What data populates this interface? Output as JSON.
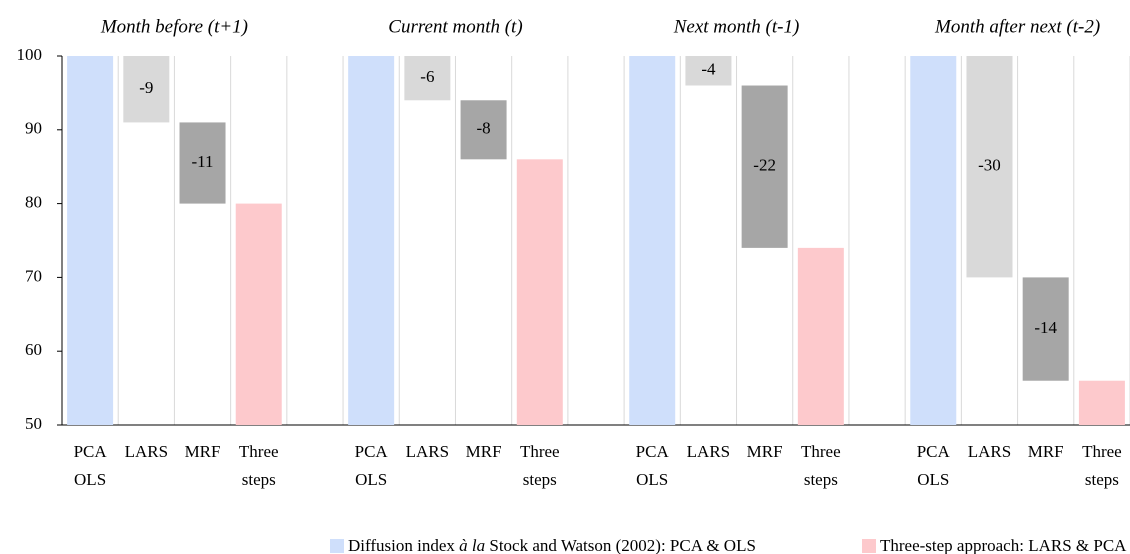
{
  "chart_data": {
    "type": "waterfall",
    "ylim": [
      50,
      100
    ],
    "yticks": [
      50,
      60,
      70,
      80,
      90,
      100
    ],
    "colors": [
      "#cfdffb",
      "#d9d9d9",
      "#a6a6a6",
      "#fdc9cc"
    ],
    "label_colors": [
      "#000000",
      "#000000",
      "#ffffff",
      "#000000"
    ],
    "categories": [
      [
        "PCA",
        "OLS"
      ],
      [
        "LARS"
      ],
      [
        "MRF"
      ],
      [
        "Three",
        "steps"
      ]
    ],
    "panels": [
      {
        "title": "Month before (t+1)",
        "values": [
          100,
          -9,
          -11,
          80
        ]
      },
      {
        "title": "Current month (t)",
        "values": [
          100,
          -6,
          -8,
          86
        ]
      },
      {
        "title": "Next month (t-1)",
        "values": [
          100,
          -4,
          -22,
          74
        ]
      },
      {
        "title": "Month after next (t-2)",
        "values": [
          100,
          -30,
          -14,
          56
        ]
      }
    ],
    "legend": [
      {
        "color": "#cfdffb",
        "text": [
          "Diffusion index ",
          "à la",
          " Stock and Watson (2002): PCA & OLS"
        ]
      },
      {
        "color": "#fdc9cc",
        "text": [
          "Three-step approach: LARS & PCA & MRF"
        ]
      }
    ]
  }
}
